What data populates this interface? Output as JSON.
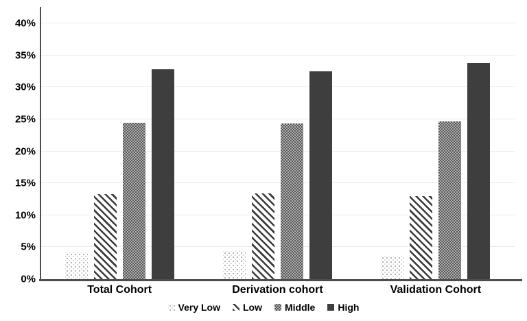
{
  "chart_data": {
    "type": "bar",
    "title": "",
    "xlabel": "",
    "ylabel": "",
    "categories": [
      "Total Cohort",
      "Derivation cohort",
      "Validation Cohort"
    ],
    "series": [
      {
        "name": "Very Low",
        "pattern": "dotted",
        "values": [
          4.2,
          4.4,
          3.6
        ]
      },
      {
        "name": "Low",
        "pattern": "diagonal-stripe",
        "values": [
          13.3,
          13.4,
          13.0
        ]
      },
      {
        "name": "Middle",
        "pattern": "checker",
        "values": [
          24.5,
          24.4,
          24.7
        ]
      },
      {
        "name": "High",
        "pattern": "solid",
        "values": [
          32.8,
          32.5,
          33.8
        ]
      }
    ],
    "ylim": [
      0,
      42.6
    ],
    "yticks": [
      0,
      5,
      10,
      15,
      20,
      25,
      30,
      35,
      40
    ],
    "ytick_format": "{v}%",
    "grid": "horizontal",
    "legend_position": "bottom"
  },
  "colors": {
    "bar_dark": "#3e3e3e",
    "stripe_dark": "#3a3a3a",
    "checker_dark": "#575757",
    "checker_light": "#b0b0b0",
    "dot": "#9f9f9f",
    "axis_line": "#4d4d4d",
    "gridline": "#e9e9e9",
    "text": "#000000"
  }
}
